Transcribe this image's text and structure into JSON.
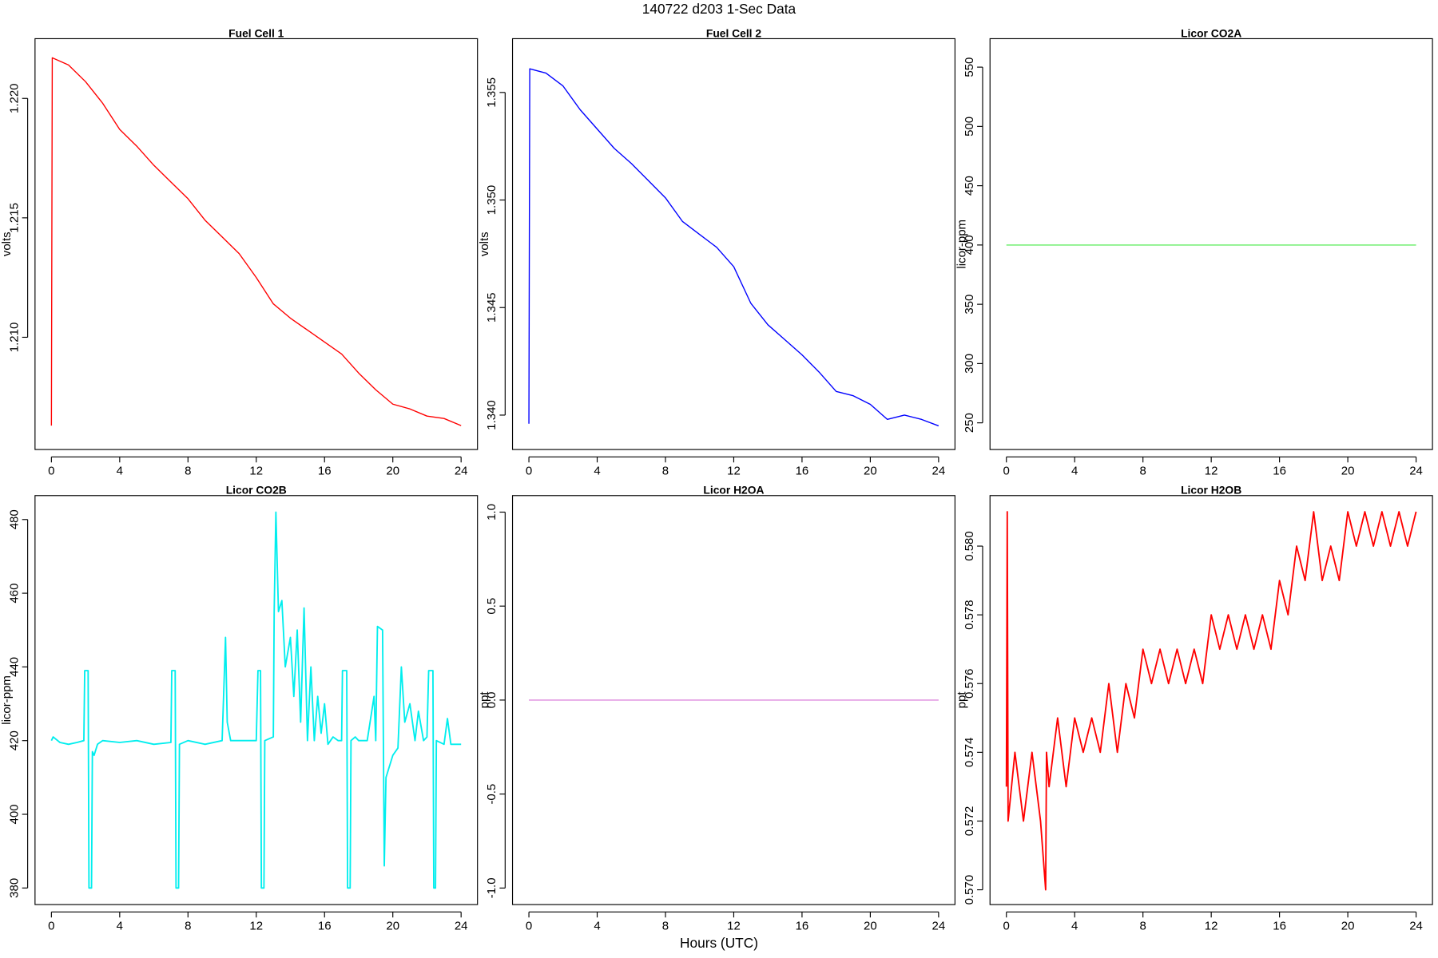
{
  "title": "140722   d203   1-Sec Data",
  "xlabel": "Hours (UTC)",
  "chart_data": [
    {
      "type": "line",
      "title": "Fuel Cell 1",
      "ylabel": "volts",
      "color": "#ff0000",
      "x": [
        0,
        0.05,
        1,
        2,
        3,
        4,
        5,
        6,
        7,
        8,
        9,
        10,
        11,
        12,
        13,
        14,
        15,
        16,
        17,
        18,
        19,
        20,
        21,
        22,
        23,
        24
      ],
      "values": [
        1.2063,
        1.2217,
        1.2214,
        1.2207,
        1.2198,
        1.2187,
        1.218,
        1.2172,
        1.2165,
        1.2158,
        1.2149,
        1.2142,
        1.2135,
        1.2125,
        1.2114,
        1.2108,
        1.2103,
        1.2098,
        1.2093,
        1.2085,
        1.2078,
        1.2072,
        1.207,
        1.2067,
        1.2066,
        1.2063
      ],
      "xlim": [
        -0.96,
        24.96
      ],
      "xticks": [
        0,
        4,
        8,
        12,
        16,
        20,
        24
      ],
      "ylim": [
        1.2053,
        1.2225
      ],
      "yticks": [
        {
          "value": 1.21,
          "label": "1.210"
        },
        {
          "value": 1.215,
          "label": "1.215"
        },
        {
          "value": 1.22,
          "label": "1.220"
        }
      ]
    },
    {
      "type": "line",
      "title": "Fuel Cell 2",
      "ylabel": "volts",
      "color": "#0000ff",
      "x": [
        0,
        0.05,
        1,
        2,
        3,
        4,
        5,
        6,
        7,
        8,
        9,
        10,
        11,
        12,
        13,
        14,
        15,
        16,
        17,
        18,
        19,
        20,
        21,
        22,
        23,
        24
      ],
      "values": [
        1.3396,
        1.3561,
        1.3559,
        1.3553,
        1.3542,
        1.3533,
        1.3524,
        1.3517,
        1.3509,
        1.3501,
        1.349,
        1.3484,
        1.3478,
        1.3469,
        1.3452,
        1.3442,
        1.3435,
        1.3428,
        1.342,
        1.3411,
        1.3409,
        1.3405,
        1.3398,
        1.34,
        1.3398,
        1.3395
      ],
      "xlim": [
        -0.96,
        24.96
      ],
      "xticks": [
        0,
        4,
        8,
        12,
        16,
        20,
        24
      ],
      "ylim": [
        1.3384,
        1.3575
      ],
      "yticks": [
        {
          "value": 1.34,
          "label": "1.340"
        },
        1.345,
        {
          "value": 1.35,
          "label": "1.350"
        },
        1.355
      ]
    },
    {
      "type": "line",
      "title": "Licor CO2A",
      "ylabel": "licor-ppm",
      "color": "#66ee66",
      "x": [
        0,
        24
      ],
      "values": [
        400,
        400
      ],
      "xlim": [
        -0.96,
        24.96
      ],
      "xticks": [
        0,
        4,
        8,
        12,
        16,
        20,
        24
      ],
      "ylim": [
        227.5,
        574
      ],
      "yticks": [
        250,
        300,
        350,
        400,
        450,
        500,
        550
      ]
    },
    {
      "type": "line",
      "title": "Licor CO2B",
      "ylabel": "licor-ppm",
      "color": "#00eeee",
      "x": [
        0,
        0.1,
        0.5,
        1,
        1.5,
        1.9,
        1.95,
        2.15,
        2.2,
        2.35,
        2.4,
        2.5,
        2.7,
        3,
        4,
        5,
        6,
        7,
        7.05,
        7.25,
        7.3,
        7.45,
        7.5,
        8,
        9,
        10,
        10.2,
        10.3,
        10.5,
        11,
        12,
        12.1,
        12.25,
        12.3,
        12.45,
        12.5,
        13,
        13.05,
        13.15,
        13.3,
        13.5,
        13.7,
        14,
        14.2,
        14.4,
        14.6,
        14.8,
        15,
        15.2,
        15.4,
        15.6,
        15.8,
        16,
        16.2,
        16.5,
        16.8,
        17,
        17.05,
        17.3,
        17.35,
        17.5,
        17.55,
        17.8,
        18,
        18.5,
        18.9,
        19,
        19.1,
        19.4,
        19.5,
        19.6,
        20,
        20.3,
        20.5,
        20.7,
        21,
        21.3,
        21.5,
        21.8,
        22,
        22.1,
        22.35,
        22.4,
        22.5,
        22.55,
        23,
        23.2,
        23.4,
        24
      ],
      "values": [
        420,
        421,
        419.5,
        419,
        419.5,
        420,
        439,
        439,
        380,
        380,
        417,
        416,
        419,
        420,
        419.5,
        420,
        419,
        419.5,
        439,
        439,
        380,
        380,
        419,
        420,
        419,
        420,
        448,
        425,
        420,
        420,
        420,
        439,
        439,
        380,
        380,
        420,
        421,
        455,
        482,
        455,
        458,
        440,
        448,
        432,
        450,
        425,
        456,
        420,
        440,
        420,
        432,
        422,
        430,
        419,
        421,
        420,
        420,
        439,
        439,
        380,
        380,
        420,
        421,
        420,
        420,
        432,
        420,
        451,
        450,
        386,
        410,
        416,
        418,
        440,
        425,
        430,
        420,
        428,
        420,
        421,
        439,
        439,
        380,
        380,
        420,
        419,
        426,
        419,
        419
      ],
      "xlim": [
        -0.96,
        24.96
      ],
      "xticks": [
        0,
        4,
        8,
        12,
        16,
        20,
        24
      ],
      "ylim": [
        375.5,
        486.5
      ],
      "yticks": [
        380,
        400,
        420,
        440,
        460,
        480
      ]
    },
    {
      "type": "line",
      "title": "Licor H2OA",
      "ylabel": "ppt",
      "color": "#dd88dd",
      "x": [
        0,
        24
      ],
      "values": [
        0,
        0
      ],
      "xlim": [
        -0.96,
        24.96
      ],
      "xticks": [
        0,
        4,
        8,
        12,
        16,
        20,
        24
      ],
      "ylim": [
        -1.088,
        1.088
      ],
      "yticks": [
        {
          "value": -1,
          "label": "-1.0"
        },
        -0.5,
        {
          "value": 0,
          "label": "0.0"
        },
        0.5,
        {
          "value": 1,
          "label": "1.0"
        }
      ]
    },
    {
      "type": "line",
      "title": "Licor H2OB",
      "ylabel": "ppt",
      "color": "#ff0000",
      "x": [
        0,
        0.05,
        0.1,
        0.5,
        1,
        1.5,
        2,
        2.3,
        2.35,
        2.5,
        3,
        3.5,
        4,
        4.5,
        5,
        5.5,
        6,
        6.5,
        7,
        7.5,
        8,
        8.5,
        9,
        9.5,
        10,
        10.5,
        11,
        11.5,
        12,
        12.5,
        13,
        13.5,
        14,
        14.5,
        15,
        15.5,
        16,
        16.5,
        17,
        17.5,
        18,
        18.5,
        19,
        19.5,
        20,
        20.5,
        21,
        21.5,
        22,
        22.5,
        23,
        23.5,
        24
      ],
      "values": [
        0.573,
        0.581,
        0.572,
        0.574,
        0.572,
        0.574,
        0.572,
        0.57,
        0.574,
        0.573,
        0.575,
        0.573,
        0.575,
        0.574,
        0.575,
        0.574,
        0.576,
        0.574,
        0.576,
        0.575,
        0.577,
        0.576,
        0.577,
        0.576,
        0.577,
        0.576,
        0.577,
        0.576,
        0.578,
        0.577,
        0.578,
        0.577,
        0.578,
        0.577,
        0.578,
        0.577,
        0.579,
        0.578,
        0.58,
        0.579,
        0.581,
        0.579,
        0.58,
        0.579,
        0.581,
        0.58,
        0.581,
        0.58,
        0.581,
        0.58,
        0.581,
        0.58,
        0.581
      ],
      "xlim": [
        -0.96,
        24.96
      ],
      "xticks": [
        0,
        4,
        8,
        12,
        16,
        20,
        24
      ],
      "ylim": [
        0.56957,
        0.58147
      ],
      "yticks": [
        {
          "value": 0.57,
          "label": "0.570"
        },
        0.572,
        0.574,
        0.576,
        0.578,
        {
          "value": 0.58,
          "label": "0.580"
        }
      ]
    }
  ]
}
